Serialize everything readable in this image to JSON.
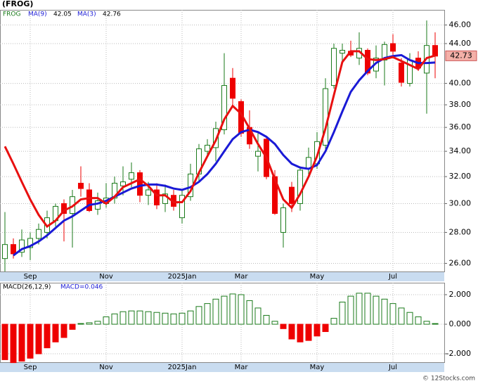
{
  "chart_data": [
    {
      "type": "candlestick",
      "title": "(FROG)",
      "symbol": "FROG",
      "categories": [
        null,
        null,
        null,
        "Sep",
        null,
        null,
        null,
        null,
        null,
        null,
        null,
        null,
        "Nov",
        null,
        null,
        null,
        null,
        null,
        null,
        null,
        null,
        "2025Jan",
        null,
        null,
        null,
        null,
        null,
        null,
        "Mar",
        null,
        null,
        null,
        null,
        null,
        null,
        null,
        null,
        "May",
        null,
        null,
        null,
        null,
        null,
        null,
        null,
        null,
        "Jul",
        null,
        null,
        null,
        null,
        null
      ],
      "ohlc": [
        [
          26.3,
          29.4,
          25.5,
          27.2
        ],
        [
          27.2,
          27.6,
          26.3,
          26.6
        ],
        [
          26.7,
          28.2,
          26.4,
          27.5
        ],
        [
          27.0,
          28.0,
          26.2,
          27.6
        ],
        [
          27.6,
          28.6,
          27.2,
          28.2
        ],
        [
          28.0,
          29.5,
          27.6,
          29.0
        ],
        [
          28.8,
          30.0,
          28.4,
          29.8
        ],
        [
          30.0,
          30.3,
          27.4,
          29.3
        ],
        [
          29.3,
          31.0,
          27.0,
          30.5
        ],
        [
          31.5,
          32.8,
          30.5,
          31.1
        ],
        [
          31.0,
          31.5,
          29.4,
          29.5
        ],
        [
          29.6,
          30.8,
          29.2,
          30.2
        ],
        [
          30.0,
          31.5,
          29.7,
          30.4
        ],
        [
          30.4,
          32.0,
          30.0,
          31.5
        ],
        [
          31.3,
          32.8,
          30.6,
          31.6
        ],
        [
          31.8,
          33.1,
          31.2,
          32.3
        ],
        [
          32.3,
          32.5,
          30.1,
          30.6
        ],
        [
          30.6,
          31.6,
          29.9,
          31.0
        ],
        [
          31.0,
          31.5,
          29.6,
          29.9
        ],
        [
          30.0,
          31.4,
          29.4,
          30.7
        ],
        [
          30.6,
          31.0,
          29.5,
          29.8
        ],
        [
          29.0,
          31.0,
          28.6,
          30.6
        ],
        [
          30.5,
          33.0,
          30.2,
          32.2
        ],
        [
          32.2,
          34.6,
          31.6,
          34.2
        ],
        [
          34.0,
          35.0,
          33.5,
          34.5
        ],
        [
          34.3,
          36.5,
          33.2,
          35.9
        ],
        [
          35.8,
          43.0,
          35.4,
          39.8
        ],
        [
          40.5,
          41.5,
          38.0,
          38.6
        ],
        [
          38.3,
          38.5,
          35.2,
          35.5
        ],
        [
          36.0,
          37.5,
          34.2,
          34.6
        ],
        [
          33.6,
          35.6,
          32.4,
          34.0
        ],
        [
          35.0,
          35.2,
          31.8,
          32.0
        ],
        [
          32.0,
          32.5,
          29.2,
          29.3
        ],
        [
          28.0,
          30.0,
          27.0,
          29.7
        ],
        [
          31.2,
          31.6,
          29.4,
          30.0
        ],
        [
          30.0,
          32.8,
          29.5,
          32.5
        ],
        [
          32.6,
          34.3,
          32.0,
          33.5
        ],
        [
          33.0,
          35.6,
          32.6,
          34.8
        ],
        [
          34.5,
          40.5,
          34.2,
          39.5
        ],
        [
          39.8,
          44.0,
          39.5,
          43.5
        ],
        [
          43.0,
          44.0,
          42.0,
          43.3
        ],
        [
          43.2,
          44.3,
          42.6,
          42.8
        ],
        [
          42.5,
          45.2,
          41.8,
          43.5
        ],
        [
          43.3,
          43.5,
          40.8,
          41.0
        ],
        [
          41.2,
          43.8,
          40.5,
          42.5
        ],
        [
          42.3,
          44.2,
          39.8,
          43.9
        ],
        [
          44.0,
          45.0,
          42.8,
          43.2
        ],
        [
          42.0,
          42.5,
          39.7,
          40.1
        ],
        [
          40.0,
          43.0,
          39.7,
          42.3
        ],
        [
          42.5,
          43.2,
          41.2,
          41.5
        ],
        [
          41.0,
          46.5,
          37.2,
          43.8
        ],
        [
          43.8,
          45.2,
          40.5,
          42.7
        ]
      ],
      "up_color": "#1a7a1a",
      "down_color": "#ee0000",
      "series": [
        {
          "name": "MA(9)",
          "color": "#1a1ad6",
          "legend_value": 42.05,
          "values": [
            null,
            26.5,
            26.9,
            27.1,
            27.4,
            27.8,
            28.3,
            28.8,
            29.1,
            29.5,
            29.9,
            30.0,
            30.2,
            30.5,
            30.8,
            31.1,
            31.3,
            31.4,
            31.4,
            31.3,
            31.1,
            31.0,
            31.2,
            31.6,
            32.2,
            33.0,
            34.0,
            35.0,
            35.6,
            35.8,
            35.6,
            35.2,
            34.6,
            33.7,
            33.0,
            32.7,
            32.6,
            32.9,
            34.0,
            35.6,
            37.4,
            39.2,
            40.3,
            41.2,
            42.0,
            42.5,
            42.7,
            42.8,
            42.3,
            42.0,
            42.0,
            42.05
          ]
        },
        {
          "name": "MA(3)",
          "color": "#e81010",
          "legend_value": 42.76,
          "values": [
            34.4,
            33.0,
            31.6,
            30.3,
            29.2,
            28.4,
            28.8,
            29.5,
            29.8,
            30.3,
            30.4,
            30.4,
            30.0,
            30.5,
            31.2,
            31.5,
            31.8,
            31.3,
            30.6,
            30.6,
            30.1,
            30.1,
            30.9,
            32.3,
            33.6,
            34.9,
            36.7,
            37.9,
            37.2,
            35.9,
            34.6,
            33.5,
            31.8,
            30.3,
            29.7,
            30.7,
            32.0,
            33.6,
            35.9,
            38.9,
            42.1,
            43.2,
            43.2,
            42.4,
            42.3,
            42.4,
            42.6,
            42.2,
            41.8,
            41.4,
            42.5,
            42.76
          ]
        }
      ],
      "log_scale": true,
      "ylim": [
        25.5,
        47.7
      ],
      "yticks": [
        {
          "value": 26,
          "label": "26.00"
        },
        {
          "value": 28,
          "label": "28.00"
        },
        {
          "value": 30,
          "label": "30.00"
        },
        {
          "value": 32,
          "label": "32.00"
        },
        {
          "value": 34,
          "label": "34.00"
        },
        {
          "value": 36,
          "label": "36.00"
        },
        {
          "value": 38,
          "label": "38.00"
        },
        {
          "value": 40,
          "label": "40.00"
        },
        {
          "value": 44,
          "label": "44.00"
        },
        {
          "value": 46,
          "label": "46.00"
        }
      ],
      "last_price": 42.73,
      "grid": true
    },
    {
      "type": "bar",
      "title": "MACD(26,12,9)",
      "indicator_label": "MACD=0.046",
      "categories": [
        null,
        null,
        null,
        "Sep",
        null,
        null,
        null,
        null,
        null,
        null,
        null,
        null,
        "Nov",
        null,
        null,
        null,
        null,
        null,
        null,
        null,
        null,
        "2025Jan",
        null,
        null,
        null,
        null,
        null,
        null,
        "Mar",
        null,
        null,
        null,
        null,
        null,
        null,
        null,
        null,
        "May",
        null,
        null,
        null,
        null,
        null,
        null,
        null,
        null,
        "Jul",
        null,
        null,
        null,
        null,
        null
      ],
      "values": [
        -2.4,
        -2.6,
        -2.5,
        -2.3,
        -2.0,
        -1.6,
        -1.2,
        -0.9,
        -0.35,
        0.05,
        0.1,
        0.2,
        0.5,
        0.7,
        0.85,
        0.9,
        0.9,
        0.85,
        0.8,
        0.75,
        0.7,
        0.75,
        0.9,
        1.2,
        1.4,
        1.7,
        1.9,
        2.05,
        2.0,
        1.6,
        1.1,
        0.6,
        0.2,
        -0.3,
        -1.0,
        -1.2,
        -1.1,
        -0.8,
        -0.5,
        0.4,
        1.5,
        1.9,
        2.1,
        2.1,
        1.9,
        1.7,
        1.4,
        1.1,
        0.8,
        0.5,
        0.2,
        0.046
      ],
      "up_color": "#1a7a1a",
      "down_color": "#ee0000",
      "ylim": [
        -2.57,
        2.81
      ],
      "yticks": [
        {
          "value": -2,
          "label": "-2.000"
        },
        {
          "value": 0,
          "label": "0.000"
        },
        {
          "value": 2,
          "label": "2.000"
        }
      ],
      "grid": true
    },
    {
      "type": "watermark",
      "text": "© 12Stocks.com"
    }
  ]
}
